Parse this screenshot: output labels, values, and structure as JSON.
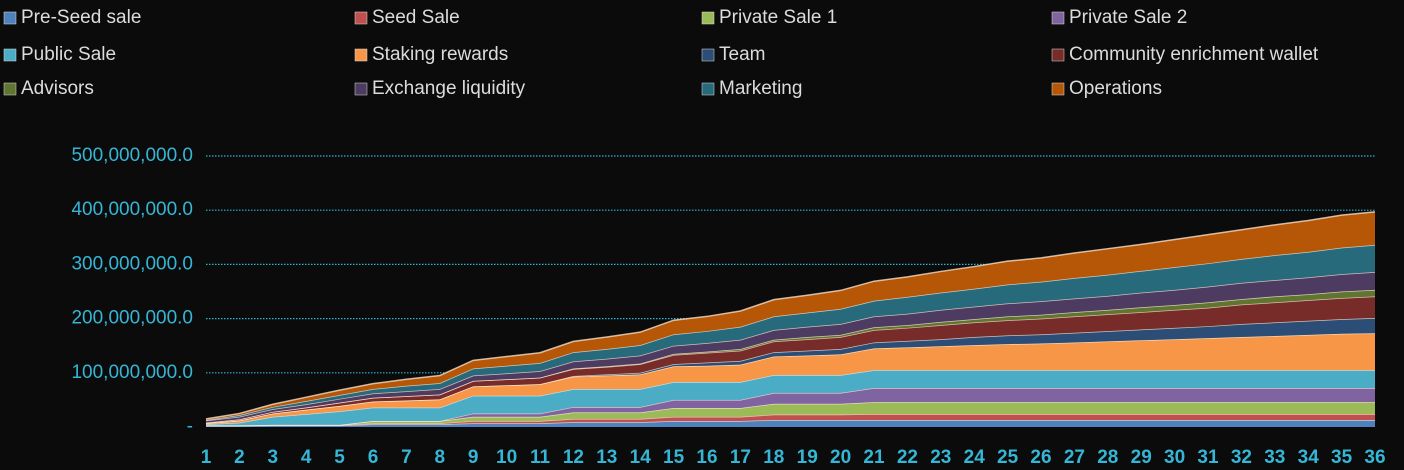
{
  "chart_data": {
    "type": "stacked-area",
    "categories": [
      1,
      2,
      3,
      4,
      5,
      6,
      7,
      8,
      9,
      10,
      11,
      12,
      13,
      14,
      15,
      16,
      17,
      18,
      19,
      20,
      21,
      22,
      23,
      24,
      25,
      26,
      27,
      28,
      29,
      30,
      31,
      32,
      33,
      34,
      35,
      36
    ],
    "ylim": [
      0,
      500000000.0
    ],
    "yticks": [
      {
        "value": 0,
        "label": "-"
      },
      {
        "value": 100000000.0,
        "label": "100,000,000.0"
      },
      {
        "value": 200000000.0,
        "label": "200,000,000.0"
      },
      {
        "value": 300000000.0,
        "label": "300,000,000.0"
      },
      {
        "value": 400000000.0,
        "label": "400,000,000.0"
      },
      {
        "value": 500000000.0,
        "label": "500,000,000.0"
      }
    ],
    "grid": true,
    "legend": "top",
    "series": [
      {
        "name": "Pre-Seed sale",
        "color": "#4f81bd",
        "values": [
          2000000.0,
          2000000.0,
          3000000.0,
          3000000.0,
          3000000.0,
          5000000.0,
          5000000.0,
          5000000.0,
          7000000.0,
          7000000.0,
          7000000.0,
          9000000.0,
          9000000.0,
          9000000.0,
          11000000.0,
          11000000.0,
          11000000.0,
          13000000.0,
          13000000.0,
          13000000.0,
          13000000.0,
          13000000.0,
          13000000.0,
          13000000.0,
          13000000.0,
          13000000.0,
          13000000.0,
          13000000.0,
          13000000.0,
          13000000.0,
          13000000.0,
          13000000.0,
          13000000.0,
          13000000.0,
          13000000.0,
          13000000.0
        ]
      },
      {
        "name": "Seed Sale",
        "color": "#c0504d",
        "values": [
          1000000.0,
          1000000.0,
          1000000.0,
          1000000.0,
          1000000.0,
          2000000.0,
          2000000.0,
          2000000.0,
          4000000.0,
          4000000.0,
          4000000.0,
          6000000.0,
          6000000.0,
          6000000.0,
          8000000.0,
          8000000.0,
          8000000.0,
          10000000.0,
          10000000.0,
          10000000.0,
          11000000.0,
          11000000.0,
          11000000.0,
          11000000.0,
          11000000.0,
          11000000.0,
          11000000.0,
          11000000.0,
          11000000.0,
          11000000.0,
          11000000.0,
          11000000.0,
          11000000.0,
          11000000.0,
          11000000.0,
          11000000.0
        ]
      },
      {
        "name": "Private Sale 1",
        "color": "#9bbb59",
        "values": [
          0,
          0,
          0,
          0,
          0,
          4000000.0,
          4000000.0,
          4000000.0,
          8000000.0,
          8000000.0,
          8000000.0,
          12000000.0,
          12000000.0,
          12000000.0,
          16000000.0,
          16000000.0,
          16000000.0,
          20000000.0,
          20000000.0,
          20000000.0,
          22000000.0,
          22000000.0,
          22000000.0,
          22000000.0,
          22000000.0,
          22000000.0,
          22000000.0,
          22000000.0,
          22000000.0,
          22000000.0,
          22000000.0,
          22000000.0,
          22000000.0,
          22000000.0,
          22000000.0,
          22000000.0
        ]
      },
      {
        "name": "Private Sale 2",
        "color": "#8064a2",
        "values": [
          0,
          0,
          0,
          0,
          0,
          0,
          0,
          0,
          6000000.0,
          6000000.0,
          6000000.0,
          10000000.0,
          10000000.0,
          10000000.0,
          15000000.0,
          15000000.0,
          15000000.0,
          20000000.0,
          20000000.0,
          20000000.0,
          26000000.0,
          26000000.0,
          26000000.0,
          26000000.0,
          26000000.0,
          26000000.0,
          26000000.0,
          26000000.0,
          26000000.0,
          26000000.0,
          26000000.0,
          26000000.0,
          26000000.0,
          26000000.0,
          26000000.0,
          26000000.0
        ]
      },
      {
        "name": "Public Sale",
        "color": "#4bacc6",
        "values": [
          2000000.0,
          5000000.0,
          15000000.0,
          20000000.0,
          25000000.0,
          25000000.0,
          25000000.0,
          25000000.0,
          33000000.0,
          33000000.0,
          33000000.0,
          33000000.0,
          33000000.0,
          33000000.0,
          33000000.0,
          33000000.0,
          33000000.0,
          33000000.0,
          33000000.0,
          33000000.0,
          33000000.0,
          33000000.0,
          33000000.0,
          33000000.0,
          33000000.0,
          33000000.0,
          33000000.0,
          33000000.0,
          33000000.0,
          33000000.0,
          33000000.0,
          33000000.0,
          33000000.0,
          33000000.0,
          33000000.0,
          33000000.0
        ]
      },
      {
        "name": "Staking rewards",
        "color": "#f79646",
        "values": [
          2000000.0,
          4000000.0,
          6000000.0,
          8000000.0,
          10000000.0,
          11000000.0,
          13000000.0,
          15000000.0,
          17000000.0,
          19000000.0,
          21000000.0,
          23000000.0,
          25000000.0,
          27000000.0,
          29000000.0,
          30000000.0,
          32000000.0,
          34000000.0,
          36000000.0,
          38000000.0,
          40000000.0,
          42000000.0,
          44000000.0,
          46000000.0,
          48000000.0,
          49000000.0,
          51000000.0,
          53000000.0,
          55000000.0,
          57000000.0,
          59000000.0,
          61000000.0,
          63000000.0,
          65000000.0,
          67000000.0,
          68000000.0
        ]
      },
      {
        "name": "Team",
        "color": "#2c4d75",
        "values": [
          0,
          0,
          0,
          0,
          0,
          0,
          0,
          0,
          0,
          0,
          0,
          1000000.0,
          2000000.0,
          3000000.0,
          4000000.0,
          6000000.0,
          7000000.0,
          8000000.0,
          9000000.0,
          10000000.0,
          11000000.0,
          12000000.0,
          13000000.0,
          15000000.0,
          16000000.0,
          17000000.0,
          18000000.0,
          19000000.0,
          20000000.0,
          21000000.0,
          22000000.0,
          24000000.0,
          25000000.0,
          26000000.0,
          27000000.0,
          28000000.0
        ]
      },
      {
        "name": "Community enrichment wallet",
        "color": "#772c2a",
        "values": [
          1000000.0,
          2000000.0,
          3000000.0,
          4000000.0,
          6000000.0,
          7000000.0,
          8000000.0,
          9000000.0,
          10000000.0,
          11000000.0,
          12000000.0,
          13000000.0,
          14000000.0,
          16000000.0,
          17000000.0,
          18000000.0,
          19000000.0,
          20000000.0,
          21000000.0,
          22000000.0,
          23000000.0,
          24000000.0,
          26000000.0,
          27000000.0,
          28000000.0,
          29000000.0,
          30000000.0,
          31000000.0,
          32000000.0,
          33000000.0,
          34000000.0,
          36000000.0,
          37000000.0,
          38000000.0,
          39000000.0,
          40000000.0
        ]
      },
      {
        "name": "Advisors",
        "color": "#5f7530",
        "values": [
          0,
          0,
          0,
          0,
          0,
          0,
          0,
          0,
          0,
          0,
          0,
          1000000.0,
          1000000.0,
          1000000.0,
          2000000.0,
          2000000.0,
          3000000.0,
          3000000.0,
          4000000.0,
          4000000.0,
          5000000.0,
          5000000.0,
          6000000.0,
          6000000.0,
          7000000.0,
          7000000.0,
          8000000.0,
          8000000.0,
          9000000.0,
          9000000.0,
          10000000.0,
          10000000.0,
          11000000.0,
          11000000.0,
          12000000.0,
          12000000.0
        ]
      },
      {
        "name": "Exchange liquidity",
        "color": "#4d3b62",
        "values": [
          4000000.0,
          5000000.0,
          5000000.0,
          6000000.0,
          7000000.0,
          8000000.0,
          9000000.0,
          10000000.0,
          10000000.0,
          11000000.0,
          12000000.0,
          13000000.0,
          14000000.0,
          15000000.0,
          15000000.0,
          16000000.0,
          17000000.0,
          18000000.0,
          19000000.0,
          20000000.0,
          20000000.0,
          21000000.0,
          22000000.0,
          23000000.0,
          24000000.0,
          25000000.0,
          25000000.0,
          26000000.0,
          27000000.0,
          28000000.0,
          29000000.0,
          30000000.0,
          30000000.0,
          31000000.0,
          32000000.0,
          33000000.0
        ]
      },
      {
        "name": "Marketing",
        "color": "#276a7c",
        "values": [
          1000000.0,
          3000000.0,
          4000000.0,
          6000000.0,
          7000000.0,
          8000000.0,
          10000000.0,
          11000000.0,
          13000000.0,
          14000000.0,
          15000000.0,
          17000000.0,
          18000000.0,
          19000000.0,
          21000000.0,
          22000000.0,
          24000000.0,
          25000000.0,
          26000000.0,
          28000000.0,
          29000000.0,
          31000000.0,
          32000000.0,
          33000000.0,
          35000000.0,
          36000000.0,
          38000000.0,
          39000000.0,
          40000000.0,
          42000000.0,
          43000000.0,
          44000000.0,
          46000000.0,
          47000000.0,
          49000000.0,
          50000000.0
        ]
      },
      {
        "name": "Operations",
        "color": "#b65708",
        "values": [
          2000000.0,
          3000000.0,
          5000000.0,
          7000000.0,
          9000000.0,
          10000000.0,
          12000000.0,
          14000000.0,
          15000000.0,
          17000000.0,
          19000000.0,
          20000000.0,
          22000000.0,
          24000000.0,
          26000000.0,
          27000000.0,
          29000000.0,
          31000000.0,
          32000000.0,
          34000000.0,
          36000000.0,
          37000000.0,
          39000000.0,
          41000000.0,
          43000000.0,
          44000000.0,
          46000000.0,
          48000000.0,
          49000000.0,
          51000000.0,
          53000000.0,
          54000000.0,
          56000000.0,
          58000000.0,
          60000000.0,
          61000000.0
        ]
      }
    ]
  }
}
